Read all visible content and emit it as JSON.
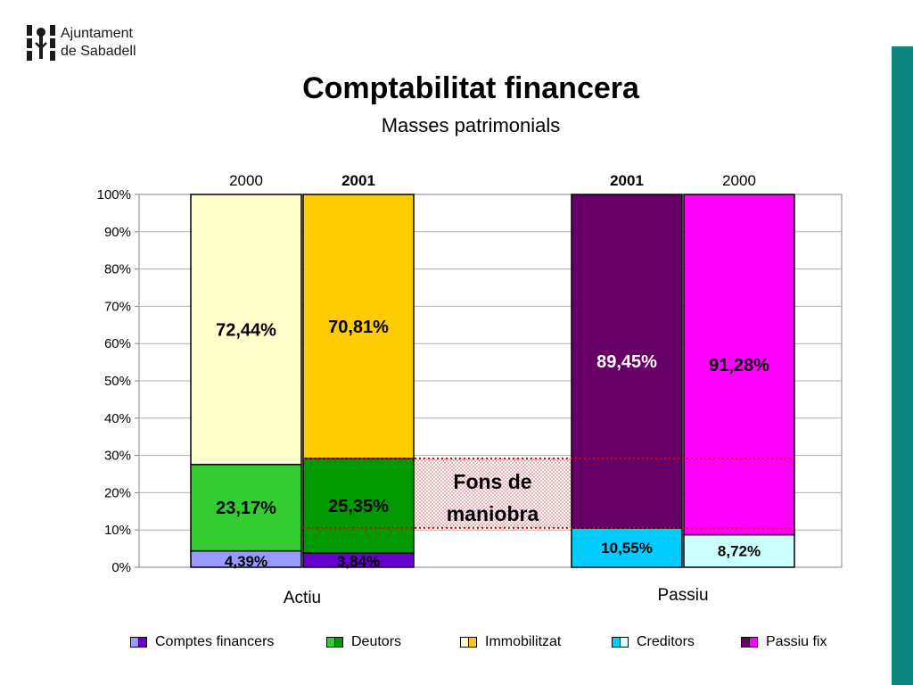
{
  "logo": {
    "line1": "Ajuntament",
    "line2": "de Sabadell"
  },
  "title": "Comptabilitat financera",
  "subtitle": "Masses patrimonials",
  "colors": {
    "accent_bar": "#0f8580"
  },
  "chart_data": {
    "type": "bar",
    "stacked": true,
    "percent": true,
    "ylim": [
      0,
      100
    ],
    "yticks": [
      "0%",
      "10%",
      "20%",
      "30%",
      "40%",
      "50%",
      "60%",
      "70%",
      "80%",
      "90%",
      "100%"
    ],
    "grid": true,
    "groups": [
      {
        "label": "Actiu",
        "bars": [
          {
            "year": "2000",
            "bold": false,
            "segments": [
              {
                "series": "Comptes financers",
                "value": 4.39,
                "label": "4,39%"
              },
              {
                "series": "Deutors",
                "value": 23.17,
                "label": "23,17%"
              },
              {
                "series": "Immobilitzat",
                "value": 72.44,
                "label": "72,44%"
              }
            ]
          },
          {
            "year": "2001",
            "bold": true,
            "segments": [
              {
                "series": "Comptes financers",
                "value": 3.84,
                "label": "3,84%"
              },
              {
                "series": "Deutors",
                "value": 25.35,
                "label": "25,35%"
              },
              {
                "series": "Immobilitzat",
                "value": 70.81,
                "label": "70,81%"
              }
            ]
          }
        ]
      },
      {
        "label": "Passiu",
        "bars": [
          {
            "year": "2001",
            "bold": true,
            "segments": [
              {
                "series": "Creditors",
                "value": 10.55,
                "label": "10,55%"
              },
              {
                "series": "Passiu fix",
                "value": 89.45,
                "label": "89,45%"
              }
            ]
          },
          {
            "year": "2000",
            "bold": false,
            "segments": [
              {
                "series": "Creditors",
                "value": 8.72,
                "label": "8,72%"
              },
              {
                "series": "Passiu fix",
                "value": 91.28,
                "label": "91,28%"
              }
            ]
          }
        ]
      }
    ],
    "annotation": {
      "label_line1": "Fons de",
      "label_line2": "maniobra",
      "from": 10.55,
      "to": 29.19
    },
    "legend": {
      "position": "bottom",
      "entries": [
        {
          "name": "Comptes financers",
          "color": "#9999ff",
          "color2": "#6600cc"
        },
        {
          "name": "Deutors",
          "color": "#33cc33",
          "color2": "#009900"
        },
        {
          "name": "Immobilitzat",
          "color": "#ffffcc",
          "color2": "#ffcc00"
        },
        {
          "name": "Creditors",
          "color": "#00ccff",
          "color2": "#ccffff"
        },
        {
          "name": "Passiu fix",
          "color": "#660066",
          "color2": "#ff00ff"
        }
      ]
    },
    "segment_colors": {
      "2000": {
        "Comptes financers": "#9999ff",
        "Deutors": "#33cc33",
        "Immobilitzat": "#ffffcc",
        "Creditors": "#ccffff",
        "Passiu fix": "#ff00ff"
      },
      "2001": {
        "Comptes financers": "#6600cc",
        "Deutors": "#009900",
        "Immobilitzat": "#ffcc00",
        "Creditors": "#00ccff",
        "Passiu fix": "#660066"
      }
    },
    "label_colors": {
      "Passiu fix 2001": "#ffffff"
    }
  }
}
